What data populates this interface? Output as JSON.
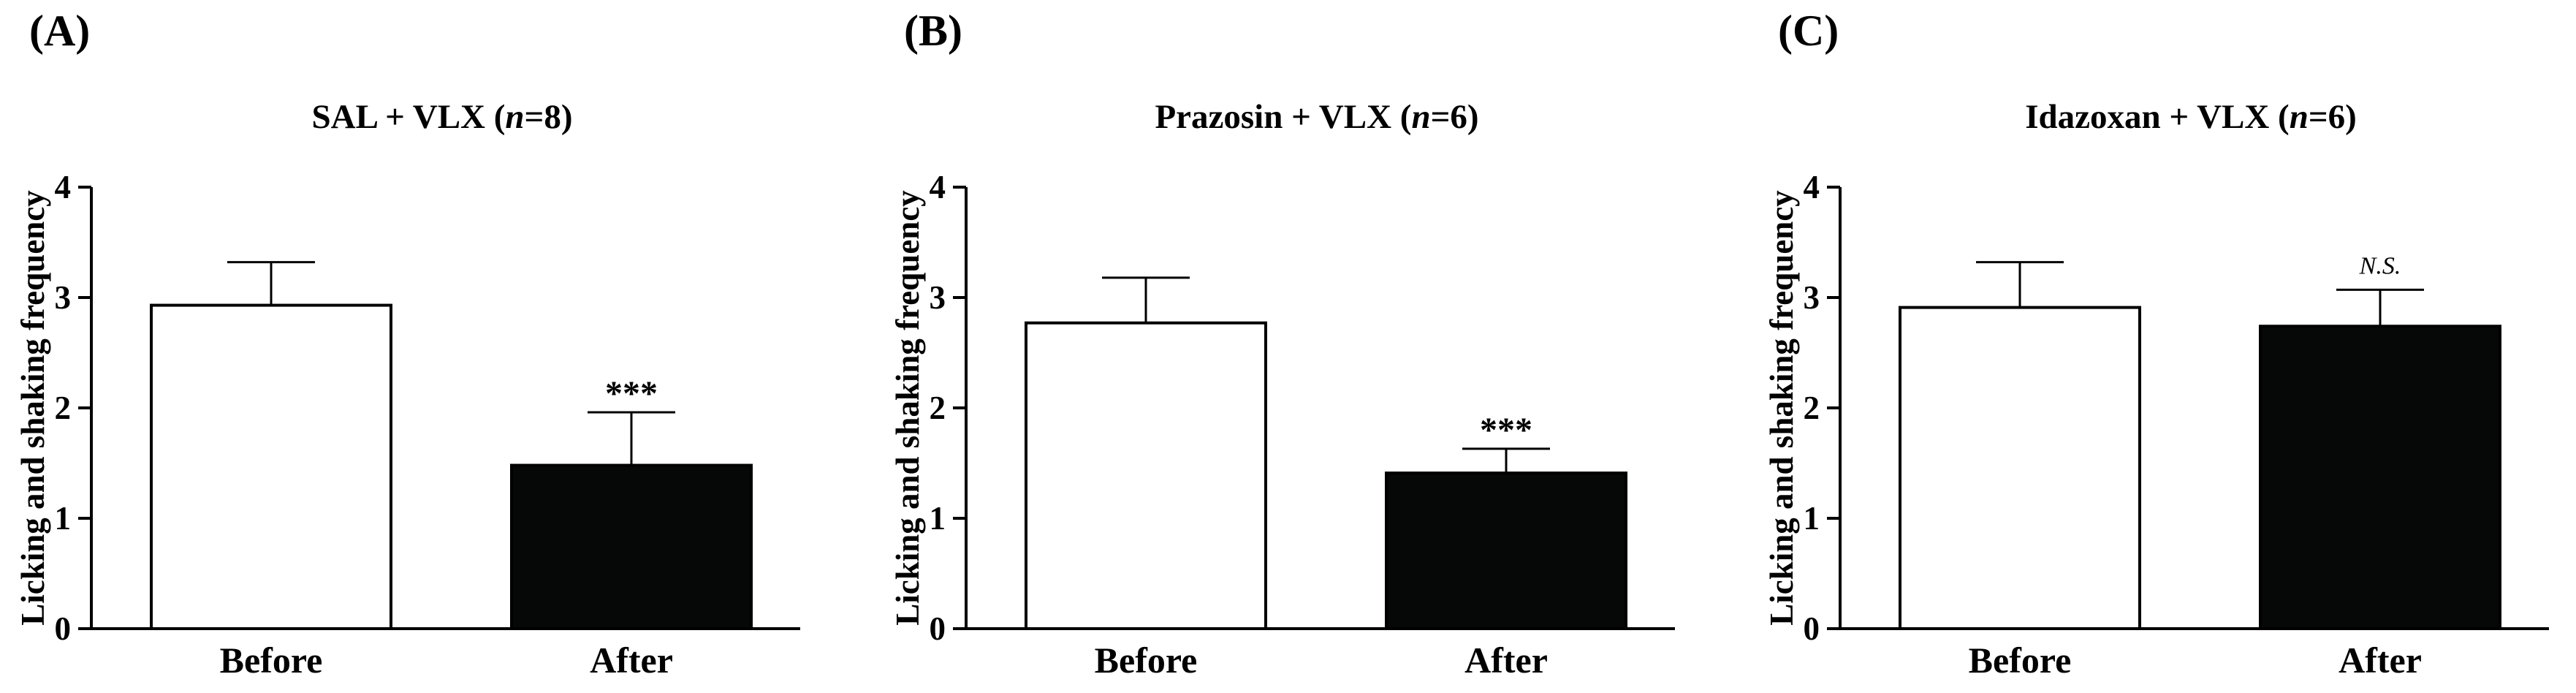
{
  "colors": {
    "before_fill": "#ffffff",
    "after_fill": "#050807",
    "axis": "#000000"
  },
  "chart_data": [
    {
      "type": "bar",
      "panel": "(A)",
      "title_parts": [
        "SAL + VLX (",
        "n",
        "=8)"
      ],
      "ylabel": "Licking and shaking frequency",
      "categories": [
        "Before",
        "After"
      ],
      "values": [
        2.93,
        1.48
      ],
      "error_upper": [
        3.32,
        1.96
      ],
      "ylim": [
        0,
        4
      ],
      "yticks": [
        "0",
        "1",
        "2",
        "3",
        "4"
      ],
      "annotations": [
        "",
        "***"
      ],
      "grid": false
    },
    {
      "type": "bar",
      "panel": "(B)",
      "title_parts": [
        "Prazosin + VLX  (",
        "n",
        "=6)"
      ],
      "ylabel": "Licking and shaking frequency",
      "categories": [
        "Before",
        "After"
      ],
      "values": [
        2.77,
        1.41
      ],
      "error_upper": [
        3.18,
        1.63
      ],
      "ylim": [
        0,
        4
      ],
      "yticks": [
        "0",
        "1",
        "2",
        "3",
        "4"
      ],
      "annotations": [
        "",
        "***"
      ],
      "grid": false
    },
    {
      "type": "bar",
      "panel": "(C)",
      "title_parts": [
        "Idazoxan + VLX (",
        "n",
        "=6)"
      ],
      "ylabel": "Licking and shaking frequency",
      "categories": [
        "Before",
        "After"
      ],
      "values": [
        2.91,
        2.74
      ],
      "error_upper": [
        3.32,
        3.07
      ],
      "ylim": [
        0,
        4
      ],
      "yticks": [
        "0",
        "1",
        "2",
        "3",
        "4"
      ],
      "annotations": [
        "",
        "N.S."
      ],
      "grid": false
    }
  ]
}
